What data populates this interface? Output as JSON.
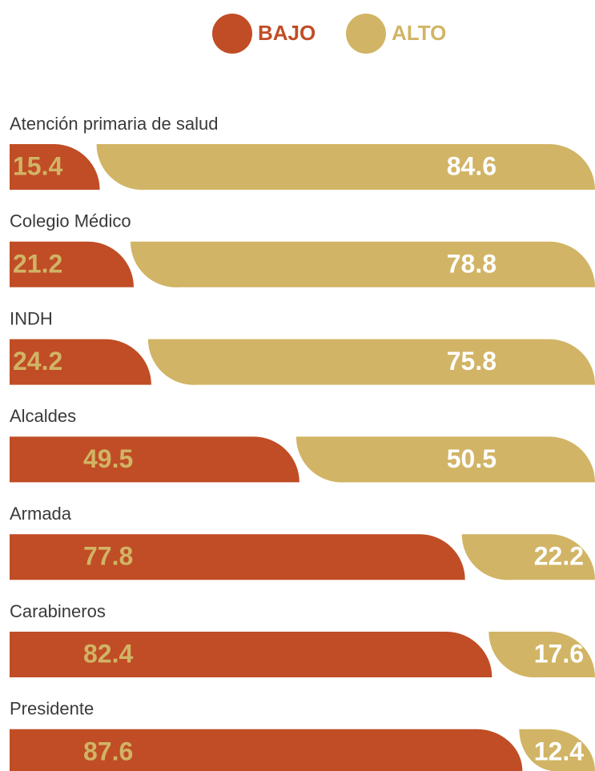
{
  "chart_data": {
    "type": "stacked-bar-horizontal",
    "categories": [
      "Atención primaria de salud",
      "Colegio Médico",
      "INDH",
      "Alcaldes",
      "Armada",
      "Carabineros",
      "Presidente"
    ],
    "series": [
      {
        "name": "BAJO",
        "color": "#c04d25",
        "values": [
          15.4,
          21.2,
          24.2,
          49.5,
          77.8,
          82.4,
          87.6
        ]
      },
      {
        "name": "ALTO",
        "color": "#d1b465",
        "values": [
          84.6,
          78.8,
          75.8,
          50.5,
          22.2,
          17.6,
          12.4
        ]
      }
    ],
    "xlim": [
      0,
      100
    ]
  }
}
